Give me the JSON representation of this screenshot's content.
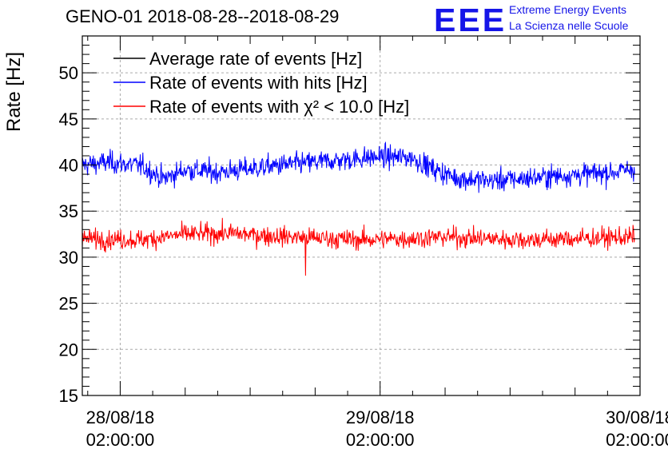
{
  "header": {
    "title": "GENO-01 2018-08-28--2018-08-29",
    "logo_text": "EEE",
    "logo_line1": "Extreme Energy Events",
    "logo_line2": "La Scienza nelle Scuole"
  },
  "colors": {
    "avg": "#000000",
    "hits": "#0000ff",
    "chi2": "#ff0000"
  },
  "chart_data": {
    "type": "line",
    "title": "GENO-01 2018-08-28--2018-08-29",
    "ylabel": "Rate [Hz]",
    "ylim": [
      15,
      54
    ],
    "yticks": [
      15,
      20,
      25,
      30,
      35,
      40,
      45,
      50
    ],
    "xlim": [
      "2018-08-27 22:30:00",
      "2018-08-30 02:00:00"
    ],
    "xticks": [
      {
        "t": "2018-08-28 02:00:00",
        "date": "28/08/18",
        "time": "02:00:00"
      },
      {
        "t": "2018-08-29 02:00:00",
        "date": "29/08/18",
        "time": "02:00:00"
      },
      {
        "t": "2018-08-30 02:00:00",
        "date": "30/08/18",
        "time": "02:00:00"
      }
    ],
    "grid": true,
    "legend": "top-left",
    "series": [
      {
        "name": "Average rate of events [Hz]",
        "color": "#000000",
        "points": []
      },
      {
        "name": "Rate of events with hits [Hz]",
        "color": "#0000ff",
        "points": [
          [
            "2018-08-27 22:30",
            40.0
          ],
          [
            "2018-08-28 01:00",
            40.3
          ],
          [
            "2018-08-28 04:00",
            39.9
          ],
          [
            "2018-08-28 06:00",
            38.5
          ],
          [
            "2018-08-28 08:00",
            39.5
          ],
          [
            "2018-08-28 11:00",
            39.2
          ],
          [
            "2018-08-28 14:00",
            39.6
          ],
          [
            "2018-08-28 17:00",
            40.0
          ],
          [
            "2018-08-28 20:00",
            40.3
          ],
          [
            "2018-08-28 23:00",
            40.6
          ],
          [
            "2018-08-29 02:00",
            40.9
          ],
          [
            "2018-08-29 05:00",
            40.8
          ],
          [
            "2018-08-29 07:00",
            39.5
          ],
          [
            "2018-08-29 09:00",
            38.6
          ],
          [
            "2018-08-29 12:00",
            38.3
          ],
          [
            "2018-08-29 15:00",
            38.5
          ],
          [
            "2018-08-29 18:00",
            38.8
          ],
          [
            "2018-08-29 21:00",
            39.0
          ],
          [
            "2018-08-30 00:00",
            39.3
          ],
          [
            "2018-08-30 01:30",
            39.6
          ]
        ]
      },
      {
        "name": "Rate of events with χ² < 10.0 [Hz]",
        "color": "#ff0000",
        "points": [
          [
            "2018-08-27 22:30",
            32.0
          ],
          [
            "2018-08-28 04:00",
            31.9
          ],
          [
            "2018-08-28 08:00",
            32.5
          ],
          [
            "2018-08-28 12:00",
            32.6
          ],
          [
            "2018-08-28 16:00",
            32.3
          ],
          [
            "2018-08-28 20:00",
            32.1
          ],
          [
            "2018-08-29 00:00",
            31.9
          ],
          [
            "2018-08-29 04:00",
            32.0
          ],
          [
            "2018-08-29 08:00",
            32.2
          ],
          [
            "2018-08-29 12:00",
            32.0
          ],
          [
            "2018-08-29 16:00",
            31.9
          ],
          [
            "2018-08-29 20:00",
            32.0
          ],
          [
            "2018-08-30 01:30",
            32.2
          ]
        ]
      }
    ]
  }
}
